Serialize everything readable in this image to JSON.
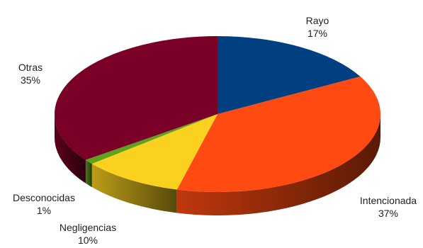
{
  "chart_data": {
    "type": "pie",
    "title": "",
    "start_angle_deg": -90,
    "direction": "clockwise",
    "slices": [
      {
        "name": "Rayo",
        "label": "17%",
        "value": 17,
        "color": "#004080"
      },
      {
        "name": "Intencionada",
        "label": "37%",
        "value": 37,
        "color": "#FF4A11"
      },
      {
        "name": "Negligencias",
        "label": "10%",
        "value": 10,
        "color": "#FBD11F"
      },
      {
        "name": "Desconocidas",
        "label": "1%",
        "value": 1,
        "color": "#5FA31C"
      },
      {
        "name": "Otras",
        "label": "35%",
        "value": 35,
        "color": "#7A0027"
      }
    ]
  }
}
